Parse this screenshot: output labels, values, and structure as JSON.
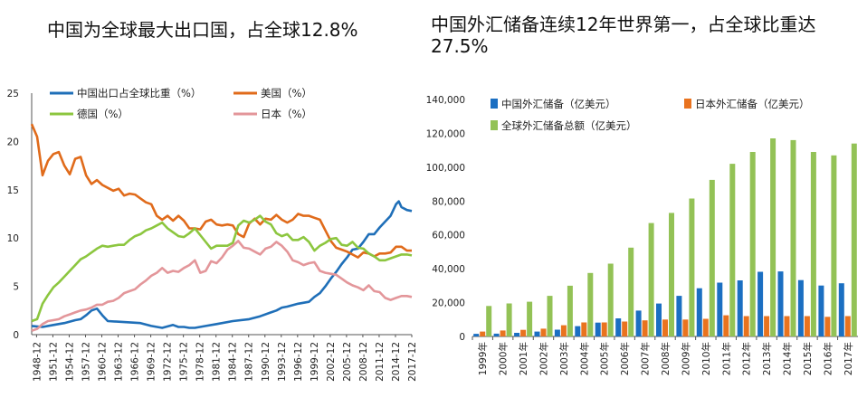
{
  "titles": {
    "left": "中国为全球最大出口国，占全球12.8%",
    "right": "中国外汇储备连续12年世界第一，占全球比重达27.5%"
  },
  "chart_data": [
    {
      "type": "line",
      "title": "中国为全球最大出口国，占全球12.8%",
      "ylim": [
        0,
        25
      ],
      "yticks": [
        "0",
        "5",
        "10",
        "15",
        "20",
        "25"
      ],
      "xlim": [
        1948,
        2017.9
      ],
      "xticks": [
        "1948-12",
        "1951-12",
        "1954-12",
        "1957-12",
        "1960-12",
        "1963-12",
        "1966-12",
        "1969-12",
        "1972-12",
        "1975-12",
        "1978-12",
        "1981-12",
        "1984-12",
        "1987-12",
        "1990-12",
        "1993-12",
        "1996-12",
        "1999-12",
        "2002-12",
        "2005-12",
        "2008-12",
        "2011-12",
        "2014-12",
        "2017-12"
      ],
      "legend": "top-left",
      "series": [
        {
          "name": "中国出口占全球比重（%）",
          "color": "#1f6fb8",
          "x": [
            1948,
            1950,
            1952,
            1954,
            1956,
            1957,
            1958,
            1959,
            1960,
            1961,
            1962,
            1965,
            1968,
            1970,
            1972,
            1974,
            1975,
            1976,
            1977,
            1978,
            1980,
            1982,
            1985,
            1988,
            1990,
            1992,
            1993,
            1994,
            1995,
            1997,
            1999,
            2000,
            2001,
            2002,
            2003,
            2004,
            2005,
            2006,
            2007,
            2008,
            2009,
            2010,
            2011,
            2012,
            2013,
            2014,
            2015,
            2015.5,
            2016,
            2017,
            2017.9
          ],
          "values": [
            0.9,
            0.8,
            1.0,
            1.2,
            1.5,
            1.6,
            2.0,
            2.5,
            2.7,
            2.0,
            1.4,
            1.3,
            1.2,
            0.9,
            0.7,
            1.0,
            0.8,
            0.8,
            0.7,
            0.7,
            0.9,
            1.1,
            1.4,
            1.6,
            1.9,
            2.3,
            2.5,
            2.8,
            2.9,
            3.2,
            3.4,
            3.9,
            4.3,
            5.0,
            5.8,
            6.5,
            7.3,
            8.0,
            8.8,
            8.9,
            9.6,
            10.4,
            10.4,
            11.1,
            11.7,
            12.3,
            13.5,
            13.8,
            13.2,
            12.9,
            12.8
          ]
        },
        {
          "name": "美国（%）",
          "color": "#e06b1b",
          "x": [
            1948,
            1949,
            1950,
            1951,
            1952,
            1953,
            1954,
            1955,
            1956,
            1957,
            1958,
            1959,
            1960,
            1961,
            1962,
            1963,
            1964,
            1965,
            1966,
            1967,
            1968,
            1969,
            1970,
            1971,
            1972,
            1973,
            1974,
            1975,
            1976,
            1977,
            1978,
            1979,
            1980,
            1981,
            1982,
            1983,
            1984,
            1985,
            1986,
            1987,
            1988,
            1989,
            1990,
            1991,
            1992,
            1993,
            1994,
            1995,
            1996,
            1997,
            1998,
            1999,
            2000,
            2001,
            2002,
            2003,
            2004,
            2005,
            2006,
            2007,
            2008,
            2009,
            2010,
            2011,
            2012,
            2013,
            2014,
            2015,
            2016,
            2017,
            2017.9
          ],
          "values": [
            21.8,
            20.5,
            16.5,
            18.0,
            18.7,
            18.9,
            17.5,
            16.6,
            18.2,
            18.4,
            16.5,
            15.6,
            16.0,
            15.5,
            15.2,
            14.9,
            15.1,
            14.4,
            14.6,
            14.5,
            14.1,
            13.7,
            13.5,
            12.3,
            11.9,
            12.3,
            11.8,
            12.3,
            11.8,
            11.0,
            11.0,
            10.9,
            11.7,
            11.9,
            11.4,
            11.3,
            11.4,
            11.3,
            10.4,
            10.1,
            11.5,
            12.0,
            11.4,
            12.0,
            11.9,
            12.4,
            11.9,
            11.6,
            11.9,
            12.5,
            12.3,
            12.3,
            12.1,
            11.9,
            10.8,
            9.7,
            9.0,
            8.8,
            8.6,
            8.3,
            8.0,
            8.5,
            8.4,
            8.1,
            8.4,
            8.4,
            8.5,
            9.1,
            9.1,
            8.7,
            8.7
          ]
        },
        {
          "name": "德国（%）",
          "color": "#8cc63f",
          "x": [
            1948,
            1949,
            1950,
            1951,
            1952,
            1953,
            1954,
            1955,
            1956,
            1957,
            1958,
            1959,
            1960,
            1961,
            1962,
            1963,
            1964,
            1965,
            1966,
            1967,
            1968,
            1969,
            1970,
            1971,
            1972,
            1973,
            1974,
            1975,
            1976,
            1977,
            1978,
            1979,
            1980,
            1981,
            1982,
            1983,
            1984,
            1985,
            1986,
            1987,
            1988,
            1989,
            1990,
            1991,
            1992,
            1993,
            1994,
            1995,
            1996,
            1997,
            1998,
            1999,
            2000,
            2001,
            2002,
            2003,
            2004,
            2005,
            2006,
            2007,
            2008,
            2009,
            2010,
            2011,
            2012,
            2013,
            2014,
            2015,
            2016,
            2017,
            2017.9
          ],
          "values": [
            1.4,
            1.6,
            3.2,
            4.1,
            4.9,
            5.4,
            6.0,
            6.6,
            7.2,
            7.8,
            8.1,
            8.5,
            8.9,
            9.2,
            9.1,
            9.2,
            9.3,
            9.3,
            9.8,
            10.2,
            10.4,
            10.8,
            11.0,
            11.3,
            11.6,
            11.0,
            10.6,
            10.2,
            10.1,
            10.5,
            11.0,
            10.3,
            9.6,
            8.9,
            9.2,
            9.2,
            9.2,
            9.5,
            11.3,
            11.8,
            11.6,
            11.9,
            12.3,
            11.7,
            11.4,
            10.5,
            10.2,
            10.4,
            9.8,
            9.8,
            10.1,
            9.6,
            8.7,
            9.2,
            9.5,
            9.9,
            10.0,
            9.3,
            9.2,
            9.6,
            9.0,
            8.9,
            8.4,
            8.1,
            7.7,
            7.7,
            7.9,
            8.1,
            8.3,
            8.3,
            8.2
          ]
        },
        {
          "name": "日本（%）",
          "color": "#e3969a",
          "x": [
            1948,
            1949,
            1950,
            1951,
            1952,
            1953,
            1954,
            1955,
            1956,
            1957,
            1958,
            1959,
            1960,
            1961,
            1962,
            1963,
            1964,
            1965,
            1966,
            1967,
            1968,
            1969,
            1970,
            1971,
            1972,
            1973,
            1974,
            1975,
            1976,
            1977,
            1978,
            1979,
            1980,
            1981,
            1982,
            1983,
            1984,
            1985,
            1986,
            1987,
            1988,
            1989,
            1990,
            1991,
            1992,
            1993,
            1994,
            1995,
            1996,
            1997,
            1998,
            1999,
            2000,
            2001,
            2002,
            2003,
            2004,
            2005,
            2006,
            2007,
            2008,
            2009,
            2010,
            2011,
            2012,
            2013,
            2014,
            2015,
            2016,
            2017,
            2017.9
          ],
          "values": [
            0.4,
            0.6,
            1.1,
            1.4,
            1.5,
            1.6,
            1.9,
            2.1,
            2.3,
            2.5,
            2.6,
            2.8,
            3.1,
            3.1,
            3.4,
            3.5,
            3.8,
            4.3,
            4.5,
            4.7,
            5.2,
            5.6,
            6.1,
            6.4,
            6.9,
            6.4,
            6.6,
            6.5,
            6.9,
            7.2,
            7.7,
            6.4,
            6.6,
            7.6,
            7.4,
            8.0,
            8.8,
            9.2,
            9.7,
            9.0,
            8.9,
            8.6,
            8.3,
            8.9,
            9.1,
            9.6,
            9.2,
            8.6,
            7.7,
            7.5,
            7.2,
            7.4,
            7.5,
            6.6,
            6.4,
            6.3,
            6.2,
            5.8,
            5.4,
            5.1,
            4.9,
            4.6,
            5.1,
            4.5,
            4.4,
            3.8,
            3.6,
            3.8,
            4.0,
            4.0,
            3.9
          ]
        }
      ]
    },
    {
      "type": "bar",
      "title": "中国外汇储备连续12年世界第一，占全球比重达27.5%",
      "categories": [
        "1999年",
        "2000年",
        "2001年",
        "2002年",
        "2003年",
        "2004年",
        "2005年",
        "2006年",
        "2007年",
        "2008年",
        "2009年",
        "2010年",
        "2011年",
        "2012年",
        "2013年",
        "2014年",
        "2015年",
        "2016年",
        "2017年"
      ],
      "ylim": [
        0,
        140000
      ],
      "yticks": [
        "0",
        "20,000",
        "40,000",
        "60,000",
        "80,000",
        "100,000",
        "120,000",
        "140,000"
      ],
      "legend": "top-left",
      "series": [
        {
          "name": "中国外汇储备（亿美元）",
          "color": "#1b6fc2",
          "values": [
            1547,
            1656,
            2122,
            2864,
            4033,
            6099,
            8189,
            10663,
            15283,
            19460,
            23992,
            28473,
            31811,
            33116,
            38213,
            38430,
            33304,
            30105,
            31399
          ]
        },
        {
          "name": "日本外汇储备（亿美元）",
          "color": "#e9731f",
          "values": [
            2900,
            3500,
            3900,
            4600,
            6600,
            8300,
            8300,
            8800,
            9500,
            10000,
            10000,
            10400,
            12500,
            12000,
            12000,
            12000,
            12000,
            11600,
            12000
          ]
        },
        {
          "name": "全球外汇储备总额（亿美元）",
          "color": "#93c256",
          "values": [
            18000,
            19500,
            20500,
            24000,
            30000,
            37500,
            43000,
            52500,
            67000,
            73000,
            81500,
            92500,
            102000,
            109000,
            117000,
            116000,
            109000,
            107000,
            114000
          ]
        }
      ]
    }
  ]
}
